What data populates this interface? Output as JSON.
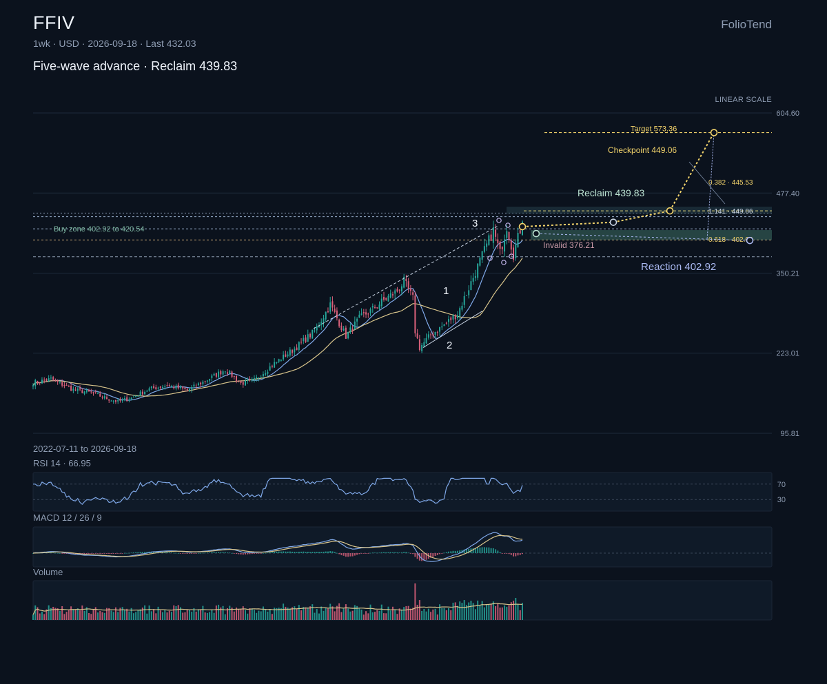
{
  "header": {
    "ticker": "FFIV",
    "meta": "1wk · USD · 2026-09-18 · Last 432.03",
    "headline": "Five-wave advance · Reclaim 439.83",
    "brand": "FolioTend",
    "scale_label": "LINEAR SCALE",
    "date_range": "2022-07-11 to 2026-09-18"
  },
  "colors": {
    "background": "#0b121d",
    "up": "#26a69a",
    "down": "#d9607a",
    "ma_fast": "#7fa8e8",
    "ma_slow": "#d9c58c",
    "target": "#f2d36b",
    "zone": "#5fae94",
    "grid": "#1d2a3b"
  },
  "chart_data": [
    {
      "type": "candlestick",
      "id": "price",
      "title": "",
      "x_range": [
        "2022-07-11",
        "2026-09-18"
      ],
      "y_ticks": [
        95.81,
        223.01,
        350.21,
        477.4,
        604.6
      ],
      "ylim": [
        95.81,
        604.6
      ],
      "last": 432.03,
      "ohlc_anchors": [
        [
          "2022-07-11",
          176
        ],
        [
          "2022-09-05",
          182
        ],
        [
          "2022-11-14",
          165
        ],
        [
          "2023-01-09",
          160
        ],
        [
          "2023-03-06",
          150
        ],
        [
          "2023-04-03",
          146
        ],
        [
          "2023-05-15",
          152
        ],
        [
          "2023-07-10",
          166
        ],
        [
          "2023-09-04",
          172
        ],
        [
          "2023-11-06",
          164
        ],
        [
          "2024-01-08",
          181
        ],
        [
          "2024-03-04",
          197
        ],
        [
          "2024-04-22",
          175
        ],
        [
          "2024-06-03",
          180
        ],
        [
          "2024-07-29",
          204
        ],
        [
          "2024-10-07",
          230
        ],
        [
          "2024-12-09",
          258
        ],
        [
          "2025-01-27",
          300
        ],
        [
          "2025-03-17",
          250
        ],
        [
          "2025-04-28",
          278
        ],
        [
          "2025-06-09",
          293
        ],
        [
          "2025-07-21",
          310
        ],
        [
          "2025-08-25",
          322
        ],
        [
          "2025-09-15",
          337
        ],
        [
          "2025-10-13",
          310
        ],
        [
          "2025-10-20",
          258
        ],
        [
          "2025-11-03",
          232
        ],
        [
          "2025-12-08",
          252
        ],
        [
          "2026-01-19",
          268
        ],
        [
          "2026-03-02",
          286
        ],
        [
          "2026-04-13",
          335
        ],
        [
          "2026-05-18",
          378
        ],
        [
          "2026-06-22",
          418
        ],
        [
          "2026-07-13",
          382
        ],
        [
          "2026-08-03",
          425
        ],
        [
          "2026-08-24",
          380
        ],
        [
          "2026-09-18",
          432.03
        ]
      ],
      "moving_averages": [
        "fast",
        "slow"
      ],
      "levels": {
        "target": 573.36,
        "checkpoint": 449.06,
        "reclaim": 439.83,
        "buy_zone_low": 402.92,
        "buy_zone_high": 420.54,
        "invalid": 376.21,
        "reaction": 402.92,
        "fib_0382": 445.53,
        "fib_1141": 449.06,
        "fib_0618": 402.92
      },
      "wave_labels": [
        "1",
        "2",
        "3"
      ],
      "annotations": {
        "target": "Target 573.36",
        "checkpoint": "Checkpoint 449.06",
        "reclaim": "Reclaim 439.83",
        "buy_zone": "Buy zone 402.92 to 420.54",
        "invalid": "Invalid 376.21",
        "reaction": "Reaction 402.92",
        "fib_0382": "0.382 · 445.53",
        "fib_1141": "1.141 · 449.06",
        "fib_0618": "0.618 · 402.92"
      }
    },
    {
      "type": "line",
      "id": "rsi",
      "title": "RSI 14 · 66.95",
      "value": 66.95,
      "ylim": [
        0,
        100
      ],
      "y_ticks": [
        70,
        30
      ]
    },
    {
      "type": "line+bar",
      "id": "macd",
      "title": "MACD 12 / 26 / 9",
      "series": [
        "macd",
        "signal",
        "histogram"
      ]
    },
    {
      "type": "bar",
      "id": "volume",
      "title": "Volume",
      "series": [
        "volume",
        "volume_ma"
      ]
    }
  ]
}
